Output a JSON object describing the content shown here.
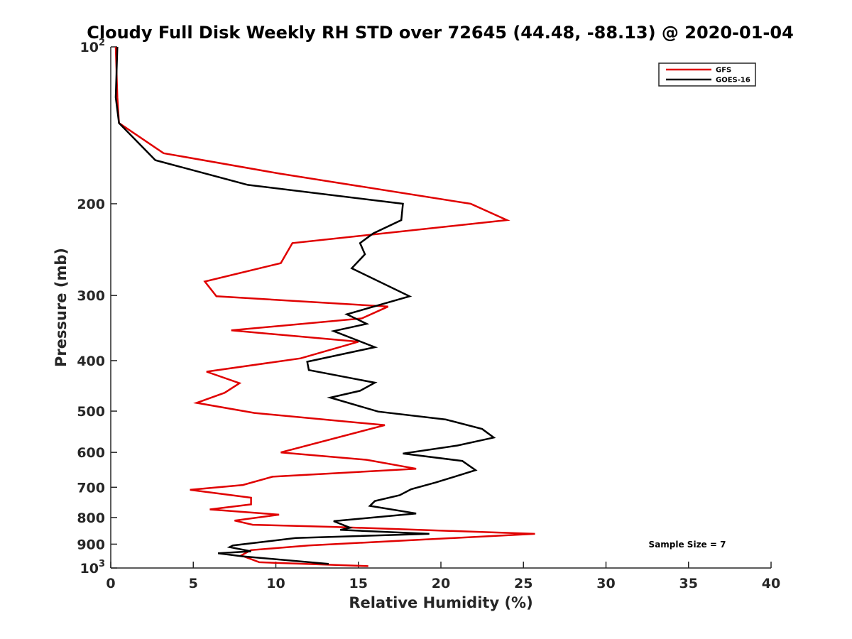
{
  "chart_data": {
    "type": "line",
    "title": "Cloudy Full Disk Weekly RH STD over 72645 (44.48, -88.13) @ 2020-01-04",
    "xlabel": "Relative Humidity (%)",
    "ylabel": "Pressure (mb)",
    "xlim": [
      0,
      40
    ],
    "ylim": [
      100,
      1000
    ],
    "yscale": "log",
    "y_reversed": true,
    "grid": false,
    "legend_position": "top-right",
    "x_ticks": [
      0,
      5,
      10,
      15,
      20,
      25,
      30,
      35,
      40
    ],
    "x_tick_labels": [
      "0",
      "5",
      "10",
      "15",
      "20",
      "25",
      "30",
      "35",
      "40"
    ],
    "y_ticks": [
      100,
      200,
      300,
      400,
      500,
      600,
      700,
      800,
      900,
      1000
    ],
    "y_tick_labels": [
      {
        "base": "10",
        "exp": "2"
      },
      {
        "base": "200",
        "exp": ""
      },
      {
        "base": "300",
        "exp": ""
      },
      {
        "base": "400",
        "exp": ""
      },
      {
        "base": "500",
        "exp": ""
      },
      {
        "base": "600",
        "exp": ""
      },
      {
        "base": "700",
        "exp": ""
      },
      {
        "base": "800",
        "exp": ""
      },
      {
        "base": "900",
        "exp": ""
      },
      {
        "base": "10",
        "exp": "3"
      }
    ],
    "annotation": "Sample Size = 7",
    "series": [
      {
        "name": "GFS",
        "color": "#e00000",
        "points": [
          [
            0.3,
            100
          ],
          [
            0.4,
            125
          ],
          [
            0.5,
            140
          ],
          [
            3.2,
            160
          ],
          [
            10.2,
            175
          ],
          [
            21.8,
            200
          ],
          [
            24.0,
            215
          ],
          [
            11.0,
            238
          ],
          [
            10.3,
            260
          ],
          [
            5.7,
            282
          ],
          [
            6.4,
            301
          ],
          [
            16.8,
            315
          ],
          [
            15.2,
            332
          ],
          [
            7.3,
            350
          ],
          [
            15.0,
            368
          ],
          [
            11.5,
            396
          ],
          [
            5.8,
            420
          ],
          [
            7.8,
            442
          ],
          [
            6.9,
            461
          ],
          [
            5.2,
            482
          ],
          [
            8.7,
            504
          ],
          [
            16.6,
            532
          ],
          [
            10.3,
            600
          ],
          [
            15.5,
            620
          ],
          [
            18.5,
            645
          ],
          [
            9.8,
            668
          ],
          [
            8.0,
            693
          ],
          [
            4.8,
            708
          ],
          [
            8.5,
            733
          ],
          [
            8.5,
            755
          ],
          [
            6.0,
            772
          ],
          [
            10.2,
            790
          ],
          [
            7.5,
            811
          ],
          [
            8.6,
            826
          ],
          [
            13.5,
            834
          ],
          [
            25.7,
            860
          ],
          [
            12.0,
            905
          ],
          [
            8.5,
            924
          ],
          [
            7.9,
            946
          ],
          [
            9.0,
            975
          ],
          [
            15.6,
            992
          ]
        ]
      },
      {
        "name": "GOES-16",
        "color": "#000000",
        "points": [
          [
            0.4,
            100
          ],
          [
            0.3,
            125
          ],
          [
            0.5,
            140
          ],
          [
            2.7,
            165
          ],
          [
            8.3,
            184
          ],
          [
            17.7,
            200
          ],
          [
            17.6,
            215
          ],
          [
            15.9,
            228
          ],
          [
            15.1,
            238
          ],
          [
            15.4,
            250
          ],
          [
            14.6,
            266
          ],
          [
            18.1,
            301
          ],
          [
            14.3,
            326
          ],
          [
            15.5,
            340
          ],
          [
            13.5,
            351
          ],
          [
            16.0,
            377
          ],
          [
            11.9,
            402
          ],
          [
            12.0,
            417
          ],
          [
            16.0,
            441
          ],
          [
            15.1,
            457
          ],
          [
            13.3,
            471
          ],
          [
            16.2,
            501
          ],
          [
            20.3,
            519
          ],
          [
            22.5,
            541
          ],
          [
            23.2,
            562
          ],
          [
            21.0,
            582
          ],
          [
            17.7,
            603
          ],
          [
            21.3,
            623
          ],
          [
            22.1,
            649
          ],
          [
            20.7,
            670
          ],
          [
            19.7,
            685
          ],
          [
            18.2,
            706
          ],
          [
            17.5,
            725
          ],
          [
            16.0,
            744
          ],
          [
            15.7,
            760
          ],
          [
            18.5,
            786
          ],
          [
            13.5,
            813
          ],
          [
            14.5,
            837
          ],
          [
            13.9,
            845
          ],
          [
            19.3,
            860
          ],
          [
            11.2,
            876
          ],
          [
            7.4,
            905
          ],
          [
            7.2,
            912
          ],
          [
            8.5,
            929
          ],
          [
            6.5,
            937
          ],
          [
            8.0,
            950
          ],
          [
            13.2,
            982
          ]
        ]
      }
    ]
  },
  "legend": {
    "items": [
      {
        "label": "GFS",
        "color": "#e00000"
      },
      {
        "label": "GOES-16",
        "color": "#000000"
      }
    ]
  }
}
